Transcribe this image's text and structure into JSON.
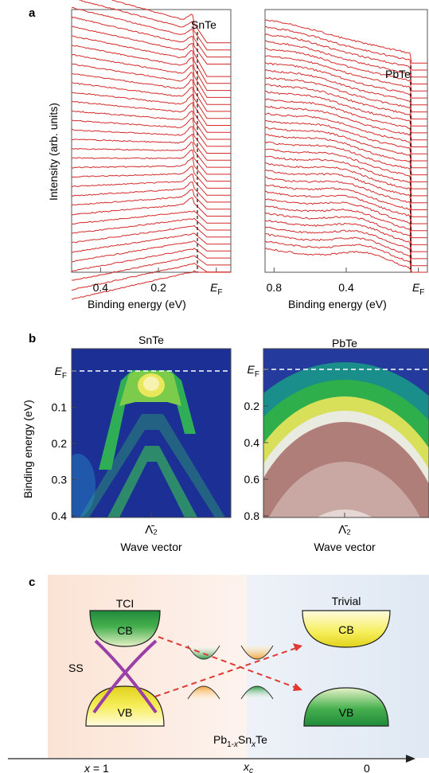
{
  "panel_a": {
    "label": "a",
    "left": {
      "title": "SnTe",
      "ylabel": "Intensity (arb. units)",
      "xlabel": "Binding energy (eV)",
      "ticks": [
        "0.4",
        "0.2",
        "E_F"
      ],
      "tick_values": [
        0.4,
        0.2,
        0.0
      ],
      "xlim": [
        0.5,
        -0.05
      ],
      "curve_count": 34,
      "curve_color": "#d42a2a"
    },
    "right": {
      "title": "PbTe",
      "xlabel": "Binding energy (eV)",
      "ticks": [
        "0.8",
        "0.4",
        "E_F"
      ],
      "tick_values": [
        0.8,
        0.4,
        0.0
      ],
      "xlim": [
        0.85,
        -0.05
      ],
      "curve_count": 33,
      "curve_color": "#d42a2a"
    }
  },
  "panel_b": {
    "label": "b",
    "left": {
      "title": "SnTe",
      "ylabel": "Binding energy (eV)",
      "yticks": [
        "E_F",
        "0.1",
        "0.2",
        "0.3",
        "0.4"
      ],
      "ytick_values": [
        0.0,
        0.1,
        0.2,
        0.3,
        0.4
      ],
      "xtick": "Λ̄₂",
      "xlabel": "Wave vector"
    },
    "right": {
      "title": "PbTe",
      "yticks": [
        "E_F",
        "0.2",
        "0.4",
        "0.6",
        "0.8"
      ],
      "ytick_values": [
        0.0,
        0.2,
        0.4,
        0.6,
        0.8
      ],
      "xtick": "Λ̄₂",
      "xlabel": "Wave vector"
    }
  },
  "panel_c": {
    "label": "c",
    "tci_label": "TCI",
    "trivial_label": "Trivial",
    "cb": "CB",
    "vb": "VB",
    "ss": "SS",
    "formula": "Pb1-xSnxTe",
    "axis_labels": [
      "x = 1",
      "xc",
      "0"
    ]
  }
}
